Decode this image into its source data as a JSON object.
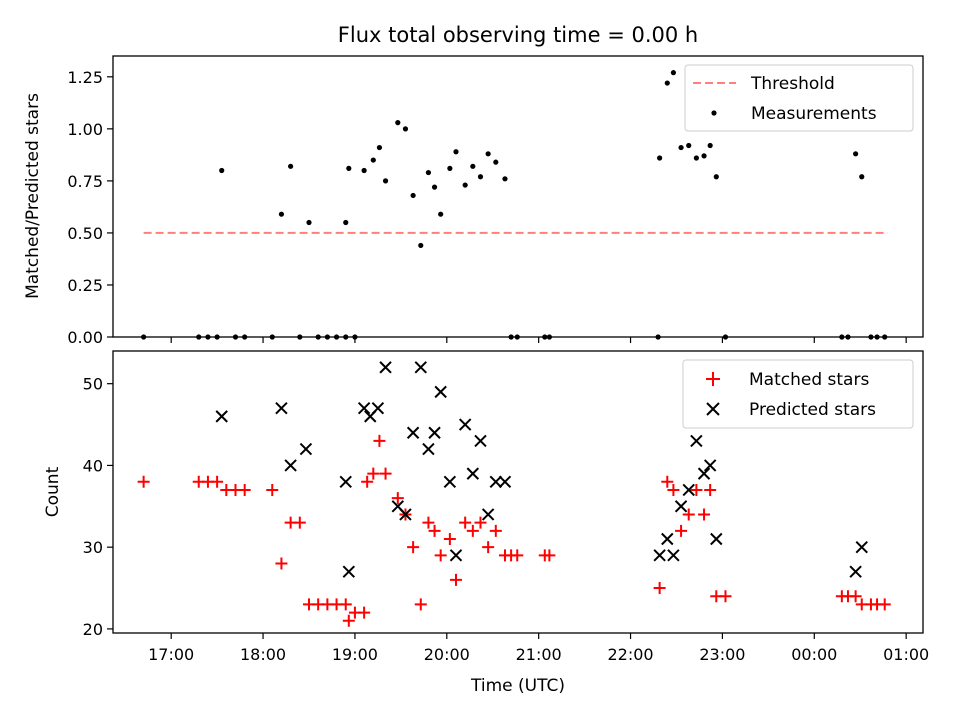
{
  "chart_data": [
    {
      "type": "scatter",
      "title": "Flux total observing time = 0.00 h",
      "ylabel": "Matched/Predicted stars",
      "xlim": [
        "16:22",
        "01:11"
      ],
      "ylim": [
        0,
        1.35
      ],
      "yticks": [
        "0.00",
        "0.25",
        "0.50",
        "0.75",
        "1.00",
        "1.25"
      ],
      "legend_position": "upper-right",
      "threshold": {
        "name": "Threshold",
        "value": 0.5,
        "x_start": "16:42",
        "x_end": "00:48",
        "color": "#ff7f7f"
      },
      "series": [
        {
          "name": "Measurements",
          "color": "#000000",
          "points": [
            [
              "16:42",
              0
            ],
            [
              "17:18",
              0
            ],
            [
              "17:24",
              0
            ],
            [
              "17:30",
              0
            ],
            [
              "17:33",
              0.8
            ],
            [
              "17:42",
              0
            ],
            [
              "17:48",
              0
            ],
            [
              "18:06",
              0
            ],
            [
              "18:12",
              0.59
            ],
            [
              "18:18",
              0.82
            ],
            [
              "18:24",
              0
            ],
            [
              "18:30",
              0.55
            ],
            [
              "18:36",
              0
            ],
            [
              "18:42",
              0
            ],
            [
              "18:48",
              0
            ],
            [
              "18:54",
              0
            ],
            [
              "18:54",
              0.55
            ],
            [
              "18:56",
              0.81
            ],
            [
              "19:00",
              0
            ],
            [
              "19:06",
              0.8
            ],
            [
              "19:12",
              0.85
            ],
            [
              "19:16",
              0.91
            ],
            [
              "19:20",
              0.75
            ],
            [
              "19:28",
              1.03
            ],
            [
              "19:33",
              1.0
            ],
            [
              "19:38",
              0.68
            ],
            [
              "19:43",
              0.44
            ],
            [
              "19:48",
              0.79
            ],
            [
              "19:52",
              0.72
            ],
            [
              "19:56",
              0.59
            ],
            [
              "20:02",
              0.81
            ],
            [
              "20:06",
              0.89
            ],
            [
              "20:12",
              0.73
            ],
            [
              "20:17",
              0.82
            ],
            [
              "20:22",
              0.77
            ],
            [
              "20:27",
              0.88
            ],
            [
              "20:32",
              0.84
            ],
            [
              "20:38",
              0.76
            ],
            [
              "20:42",
              0
            ],
            [
              "20:46",
              0
            ],
            [
              "21:04",
              0
            ],
            [
              "21:07",
              0
            ],
            [
              "22:18",
              0
            ],
            [
              "22:19",
              0.86
            ],
            [
              "22:24",
              1.22
            ],
            [
              "22:28",
              1.27
            ],
            [
              "22:33",
              0.91
            ],
            [
              "22:38",
              0.92
            ],
            [
              "22:43",
              0.86
            ],
            [
              "22:48",
              0.87
            ],
            [
              "22:52",
              0.92
            ],
            [
              "22:56",
              0.77
            ],
            [
              "23:02",
              0
            ],
            [
              "00:18",
              0
            ],
            [
              "00:22",
              0
            ],
            [
              "00:27",
              0.88
            ],
            [
              "00:31",
              0.77
            ],
            [
              "00:37",
              0
            ],
            [
              "00:41",
              0
            ],
            [
              "00:46",
              0
            ]
          ]
        }
      ]
    },
    {
      "type": "scatter",
      "xlabel": "Time (UTC)",
      "ylabel": "Count",
      "xlim": [
        "16:22",
        "01:11"
      ],
      "ylim": [
        19.5,
        54
      ],
      "yticks": [
        "20",
        "30",
        "40",
        "50"
      ],
      "xticks": [
        "17:00",
        "18:00",
        "19:00",
        "20:00",
        "21:00",
        "22:00",
        "23:00",
        "00:00",
        "01:00"
      ],
      "legend_position": "upper-right",
      "series": [
        {
          "name": "Matched stars",
          "marker": "+",
          "color": "#ff0000",
          "points": [
            [
              "16:42",
              38
            ],
            [
              "17:18",
              38
            ],
            [
              "17:24",
              38
            ],
            [
              "17:30",
              38
            ],
            [
              "17:36",
              37
            ],
            [
              "17:42",
              37
            ],
            [
              "17:48",
              37
            ],
            [
              "18:06",
              37
            ],
            [
              "18:12",
              28
            ],
            [
              "18:18",
              33
            ],
            [
              "18:24",
              33
            ],
            [
              "18:30",
              23
            ],
            [
              "18:36",
              23
            ],
            [
              "18:42",
              23
            ],
            [
              "18:48",
              23
            ],
            [
              "18:54",
              23
            ],
            [
              "18:56",
              21
            ],
            [
              "19:00",
              22
            ],
            [
              "19:06",
              22
            ],
            [
              "19:08",
              38
            ],
            [
              "19:12",
              39
            ],
            [
              "19:16",
              43
            ],
            [
              "19:20",
              39
            ],
            [
              "19:28",
              36
            ],
            [
              "19:33",
              34
            ],
            [
              "19:38",
              30
            ],
            [
              "19:43",
              23
            ],
            [
              "19:48",
              33
            ],
            [
              "19:52",
              32
            ],
            [
              "19:56",
              29
            ],
            [
              "20:02",
              31
            ],
            [
              "20:06",
              26
            ],
            [
              "20:12",
              33
            ],
            [
              "20:17",
              32
            ],
            [
              "20:22",
              33
            ],
            [
              "20:27",
              30
            ],
            [
              "20:32",
              32
            ],
            [
              "20:38",
              29
            ],
            [
              "20:42",
              29
            ],
            [
              "20:46",
              29
            ],
            [
              "21:04",
              29
            ],
            [
              "21:07",
              29
            ],
            [
              "22:19",
              25
            ],
            [
              "22:24",
              38
            ],
            [
              "22:28",
              37
            ],
            [
              "22:33",
              32
            ],
            [
              "22:38",
              34
            ],
            [
              "22:43",
              37
            ],
            [
              "22:48",
              34
            ],
            [
              "22:52",
              37
            ],
            [
              "22:56",
              24
            ],
            [
              "23:02",
              24
            ],
            [
              "00:18",
              24
            ],
            [
              "00:22",
              24
            ],
            [
              "00:27",
              24
            ],
            [
              "00:31",
              23
            ],
            [
              "00:37",
              23
            ],
            [
              "00:41",
              23
            ],
            [
              "00:46",
              23
            ]
          ]
        },
        {
          "name": "Predicted stars",
          "marker": "x",
          "color": "#000000",
          "points": [
            [
              "17:33",
              46
            ],
            [
              "18:12",
              47
            ],
            [
              "18:18",
              40
            ],
            [
              "18:28",
              42
            ],
            [
              "18:54",
              38
            ],
            [
              "18:56",
              27
            ],
            [
              "19:06",
              47
            ],
            [
              "19:10",
              46
            ],
            [
              "19:15",
              47
            ],
            [
              "19:20",
              52
            ],
            [
              "19:28",
              35
            ],
            [
              "19:33",
              34
            ],
            [
              "19:38",
              44
            ],
            [
              "19:43",
              52
            ],
            [
              "19:48",
              42
            ],
            [
              "19:52",
              44
            ],
            [
              "19:56",
              49
            ],
            [
              "20:02",
              38
            ],
            [
              "20:06",
              29
            ],
            [
              "20:12",
              45
            ],
            [
              "20:17",
              39
            ],
            [
              "20:22",
              43
            ],
            [
              "20:27",
              34
            ],
            [
              "20:32",
              38
            ],
            [
              "20:38",
              38
            ],
            [
              "22:19",
              29
            ],
            [
              "22:24",
              31
            ],
            [
              "22:28",
              29
            ],
            [
              "22:33",
              35
            ],
            [
              "22:38",
              37
            ],
            [
              "22:43",
              43
            ],
            [
              "22:48",
              39
            ],
            [
              "22:52",
              40
            ],
            [
              "22:56",
              31
            ],
            [
              "00:27",
              27
            ],
            [
              "00:31",
              30
            ]
          ]
        }
      ]
    }
  ]
}
